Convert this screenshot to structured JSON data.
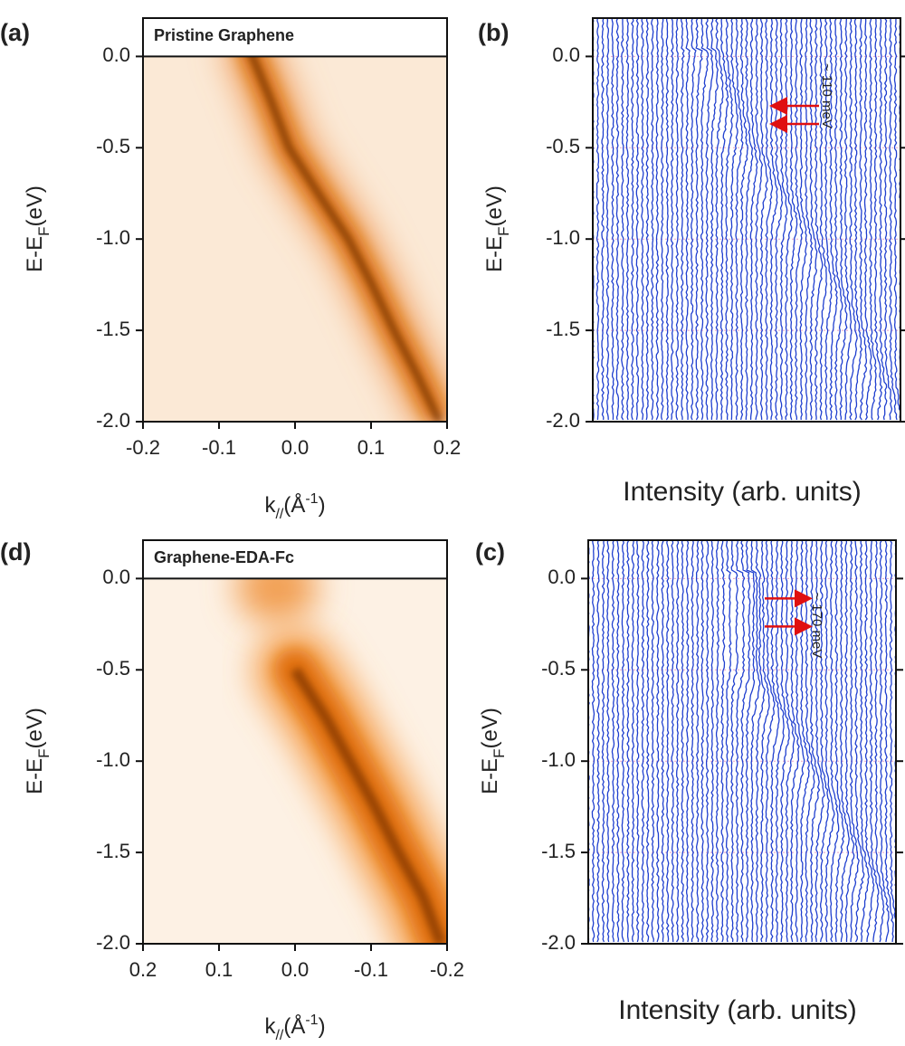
{
  "chart_data": [
    {
      "type": "heatmap",
      "panel_label": "(a)",
      "title": "Pristine Graphene",
      "ylabel": [
        "E-E",
        "F",
        "(eV)"
      ],
      "xlabel": [
        "k",
        "//",
        "(Å",
        "-1",
        ")"
      ],
      "xlim": [
        -0.2,
        0.2
      ],
      "xticks": [
        -0.2,
        -0.1,
        {
          "value": 0,
          "label": "0.0"
        },
        0.1,
        0.2
      ],
      "ylim": [
        -2.0,
        0.21
      ],
      "yticks": [
        {
          "value": 0,
          "label": "0.0"
        },
        -0.5,
        {
          "value": -1,
          "label": "-1.0"
        },
        -1.5,
        {
          "value": -2,
          "label": "-2.0"
        }
      ]
    },
    {
      "type": "waterfall",
      "panel_label": "(b)",
      "annotation": "~ 110 meV",
      "ylabel": [
        "E-E",
        "F",
        "(eV)"
      ],
      "xlabel": "Intensity (arb. units)",
      "color": "#1f3fcf",
      "grid": true,
      "ylim": [
        -2.0,
        0.21
      ],
      "yticks": [
        {
          "value": 0,
          "label": "0.0"
        },
        -0.5,
        {
          "value": -1,
          "label": "-1.0"
        },
        -1.5,
        {
          "value": -2,
          "label": "-2.0"
        }
      ]
    },
    {
      "type": "heatmap",
      "panel_label": "(d)",
      "title": "Graphene-EDA-Fc",
      "ylabel": [
        "E-E",
        "F",
        "(eV)"
      ],
      "xlabel": [
        "k",
        "//",
        "(Å",
        "-1",
        ")"
      ],
      "xlim": [
        0.2,
        -0.2
      ],
      "xticks": [
        0.2,
        0.1,
        {
          "value": 0,
          "label": "0.0"
        },
        -0.1,
        -0.2
      ],
      "ylim": [
        -2.0,
        0.21
      ],
      "yticks": [
        {
          "value": 0,
          "label": "0.0"
        },
        -0.5,
        {
          "value": -1,
          "label": "-1.0"
        },
        -1.5,
        {
          "value": -2,
          "label": "-2.0"
        }
      ]
    },
    {
      "type": "waterfall",
      "panel_label": "(c)",
      "annotation": "~ 170 meV",
      "ylabel": [
        "E-E",
        "F",
        "(eV)"
      ],
      "xlabel": "Intensity (arb. units)",
      "color": "#1f3fcf",
      "grid": true,
      "ylim": [
        -2.0,
        0.21
      ],
      "yticks": [
        {
          "value": 0,
          "label": "0.0"
        },
        -0.5,
        {
          "value": -1,
          "label": "-1.0"
        },
        -1.5,
        {
          "value": -2,
          "label": "-2.0"
        }
      ]
    }
  ]
}
